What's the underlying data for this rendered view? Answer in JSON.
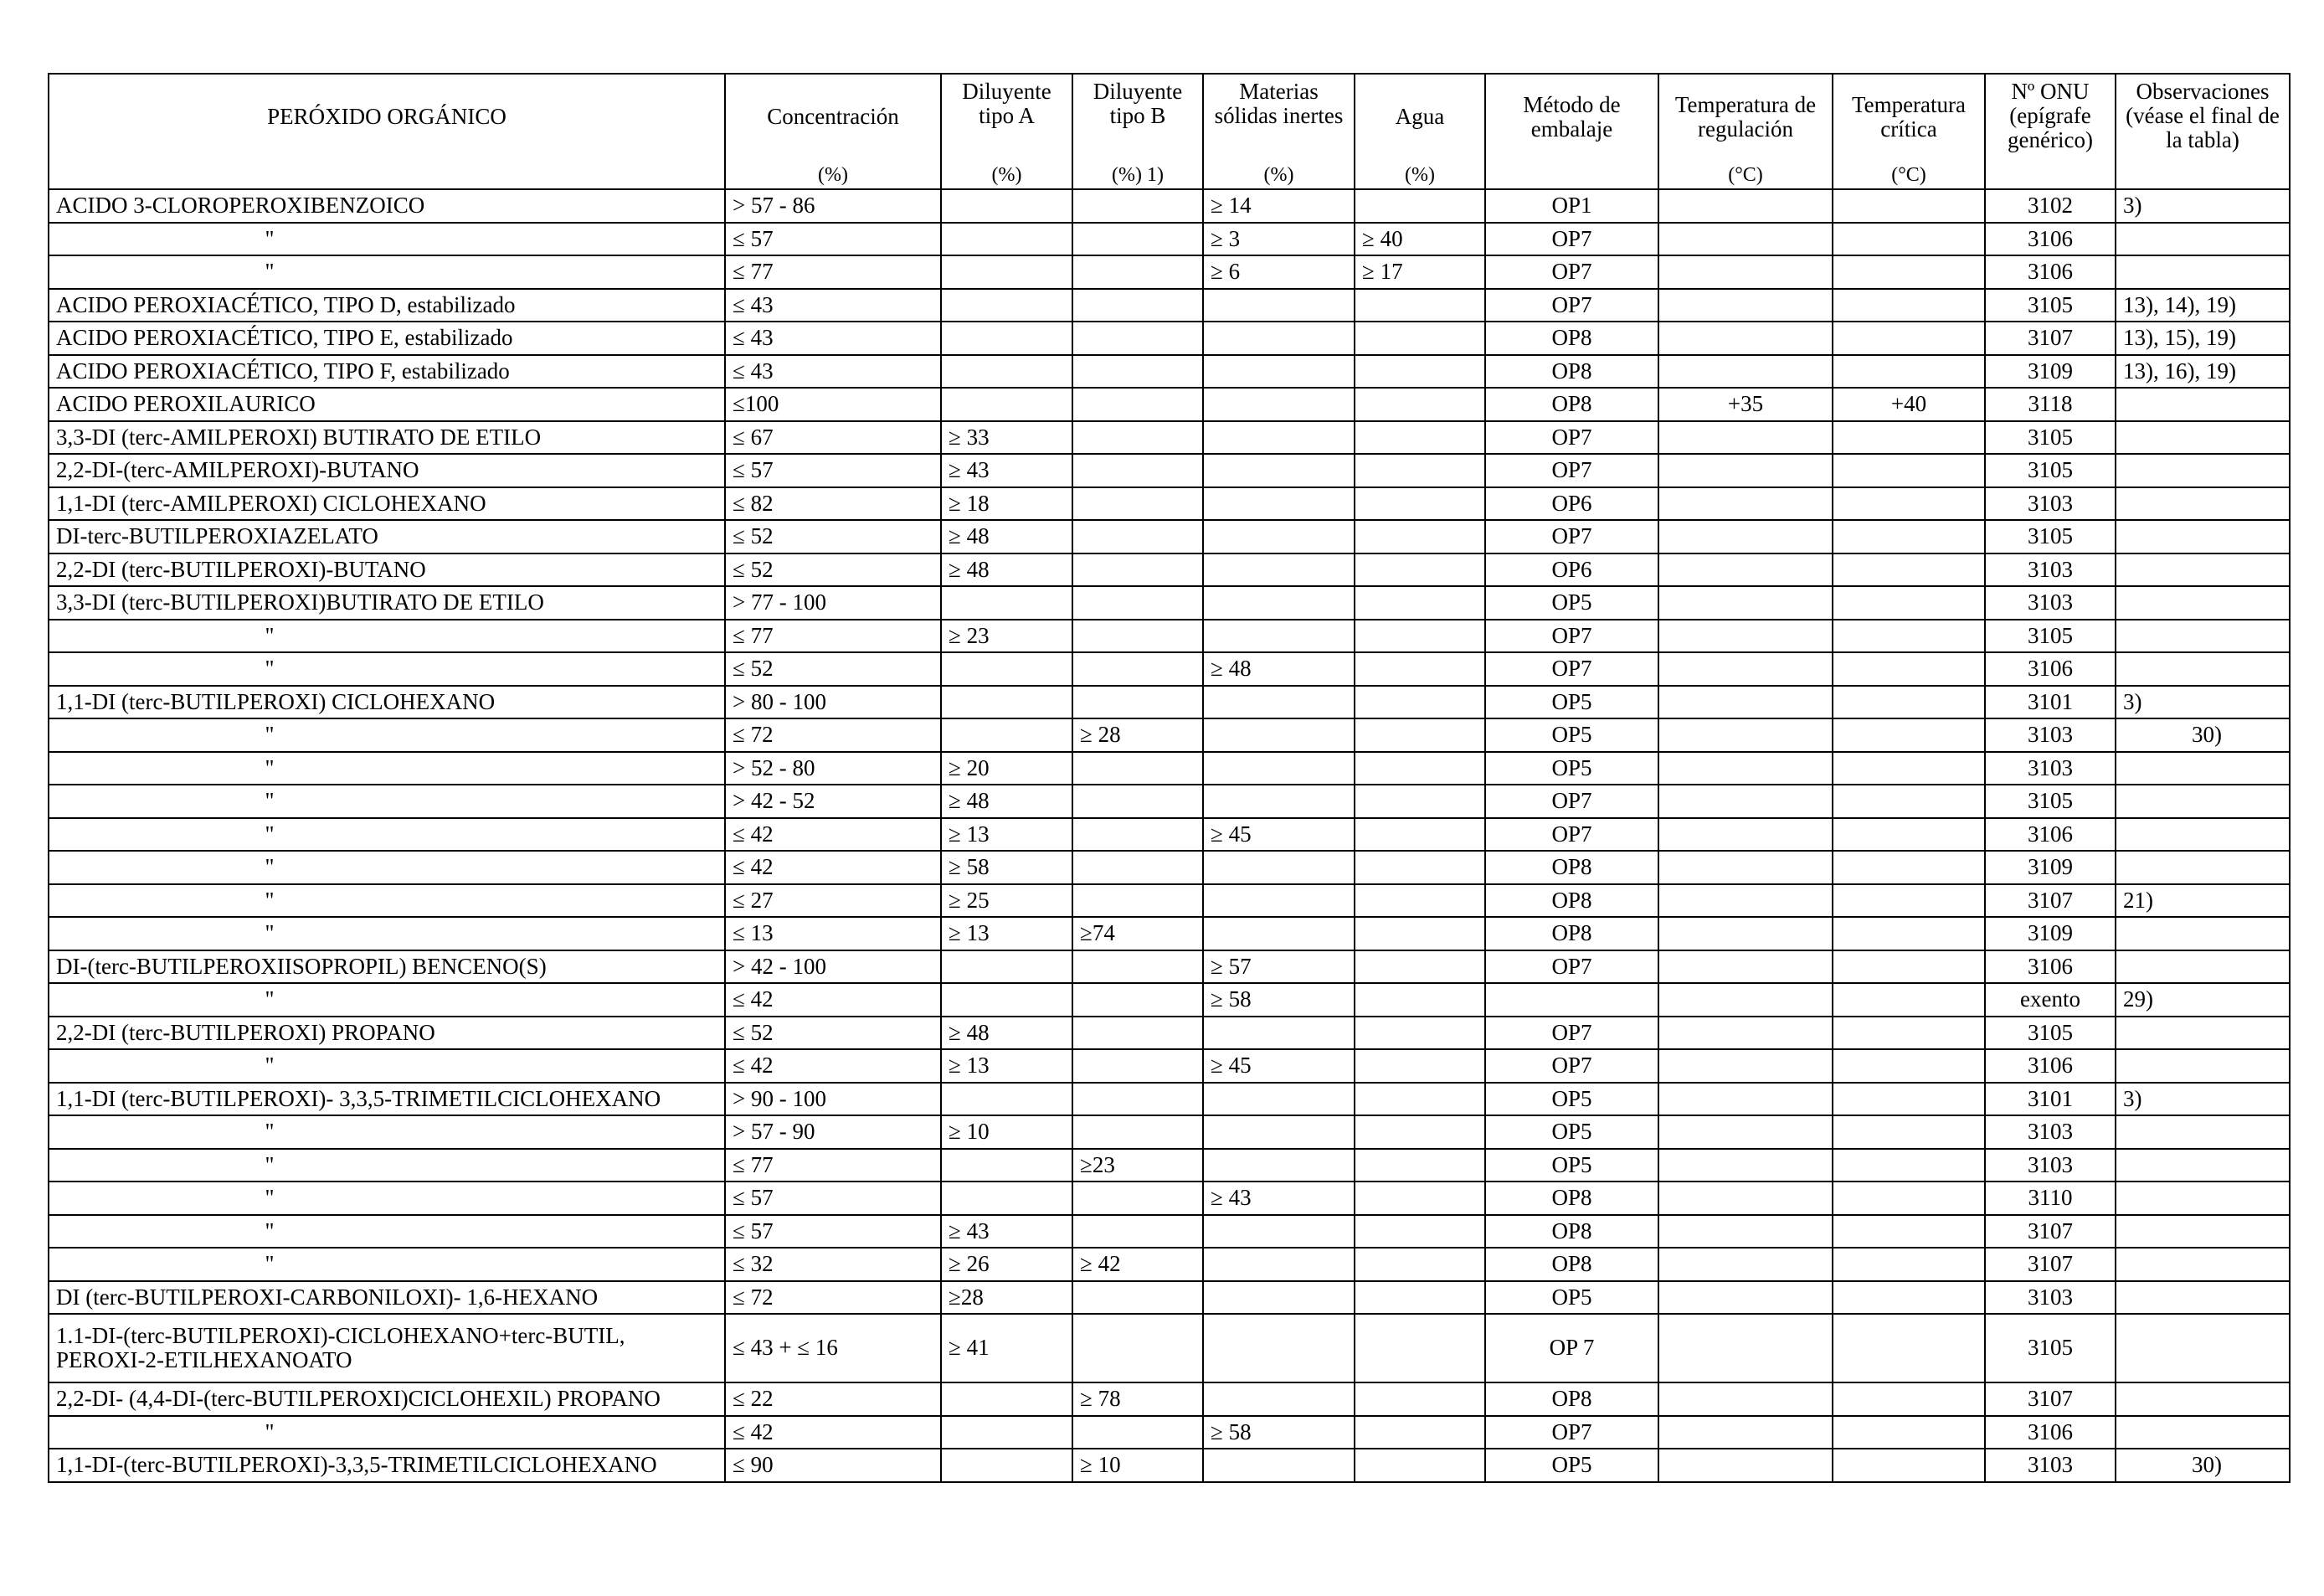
{
  "table": {
    "headers": {
      "name": "PERÓXIDO ORGÁNICO",
      "concentration": "Concentración",
      "concentration_unit": "(%)",
      "diluent_a": "Diluyente tipo A",
      "diluent_a_unit": "(%)",
      "diluent_b": "Diluyente tipo B",
      "diluent_b_unit": "(%) 1)",
      "inert_solids": "Materias sólidas inertes",
      "inert_solids_unit": "(%)",
      "water": "Agua",
      "water_unit": "(%)",
      "packing_method": "Método de embalaje",
      "control_temp": "Temperatura de regulación",
      "control_temp_unit": "(°C)",
      "critical_temp": "Temperatura crítica",
      "critical_temp_unit": "(°C)",
      "un_number": "Nº ONU (epígrafe genérico)",
      "observations": "Observaciones (véase el final de la tabla)"
    },
    "rows": [
      {
        "name": "ACIDO 3-CLOROPEROXIBENZOICO",
        "conc": "> 57 - 86",
        "a": "",
        "b": "",
        "solid": "≥ 14",
        "water": "",
        "method": "OP1",
        "treg": "",
        "tcrit": "",
        "un": "3102",
        "obs": "3)"
      },
      {
        "name": "\"",
        "conc": "≤ 57",
        "a": "",
        "b": "",
        "solid": "≥ 3",
        "water": "≥ 40",
        "method": "OP7",
        "treg": "",
        "tcrit": "",
        "un": "3106",
        "obs": ""
      },
      {
        "name": "\"",
        "conc": "≤ 77",
        "a": "",
        "b": "",
        "solid": "≥ 6",
        "water": "≥ 17",
        "method": "OP7",
        "treg": "",
        "tcrit": "",
        "un": "3106",
        "obs": ""
      },
      {
        "name": "ACIDO PEROXIACÉTICO, TIPO D, estabilizado",
        "conc": "≤ 43",
        "a": "",
        "b": "",
        "solid": "",
        "water": "",
        "method": "OP7",
        "treg": "",
        "tcrit": "",
        "un": "3105",
        "obs": "13), 14), 19)"
      },
      {
        "name": "ACIDO PEROXIACÉTICO, TIPO E, estabilizado",
        "conc": "≤ 43",
        "a": "",
        "b": "",
        "solid": "",
        "water": "",
        "method": "OP8",
        "treg": "",
        "tcrit": "",
        "un": "3107",
        "obs": "13), 15), 19)"
      },
      {
        "name": "ACIDO PEROXIACÉTICO, TIPO F, estabilizado",
        "conc": "≤ 43",
        "a": "",
        "b": "",
        "solid": "",
        "water": "",
        "method": "OP8",
        "treg": "",
        "tcrit": "",
        "un": "3109",
        "obs": "13), 16), 19)"
      },
      {
        "name": "ACIDO PEROXILAURICO",
        "conc": "≤100",
        "a": "",
        "b": "",
        "solid": "",
        "water": "",
        "method": "OP8",
        "treg": "+35",
        "tcrit": "+40",
        "un": "3118",
        "obs": ""
      },
      {
        "name": "3,3-DI (terc-AMILPEROXI) BUTIRATO DE ETILO",
        "conc": "≤ 67",
        "a": "≥ 33",
        "b": "",
        "solid": "",
        "water": "",
        "method": "OP7",
        "treg": "",
        "tcrit": "",
        "un": "3105",
        "obs": ""
      },
      {
        "name": "2,2-DI-(terc-AMILPEROXI)-BUTANO",
        "conc": "≤ 57",
        "a": "≥ 43",
        "b": "",
        "solid": "",
        "water": "",
        "method": "OP7",
        "treg": "",
        "tcrit": "",
        "un": "3105",
        "obs": ""
      },
      {
        "name": "1,1-DI (terc-AMILPEROXI) CICLOHEXANO",
        "conc": "≤ 82",
        "a": "≥ 18",
        "b": "",
        "solid": "",
        "water": "",
        "method": "OP6",
        "treg": "",
        "tcrit": "",
        "un": "3103",
        "obs": ""
      },
      {
        "name": "DI-terc-BUTILPEROXIAZELATO",
        "conc": "≤ 52",
        "a": "≥ 48",
        "b": "",
        "solid": "",
        "water": "",
        "method": "OP7",
        "treg": "",
        "tcrit": "",
        "un": "3105",
        "obs": ""
      },
      {
        "name": "2,2-DI (terc-BUTILPEROXI)-BUTANO",
        "conc": "≤ 52",
        "a": "≥ 48",
        "b": "",
        "solid": "",
        "water": "",
        "method": "OP6",
        "treg": "",
        "tcrit": "",
        "un": "3103",
        "obs": ""
      },
      {
        "name": "3,3-DI (terc-BUTILPEROXI)BUTIRATO DE ETILO",
        "conc": "> 77 - 100",
        "a": "",
        "b": "",
        "solid": "",
        "water": "",
        "method": "OP5",
        "treg": "",
        "tcrit": "",
        "un": "3103",
        "obs": ""
      },
      {
        "name": "\"",
        "conc": "≤ 77",
        "a": "≥ 23",
        "b": "",
        "solid": "",
        "water": "",
        "method": "OP7",
        "treg": "",
        "tcrit": "",
        "un": "3105",
        "obs": ""
      },
      {
        "name": "\"",
        "conc": "≤ 52",
        "a": "",
        "b": "",
        "solid": "≥ 48",
        "water": "",
        "method": "OP7",
        "treg": "",
        "tcrit": "",
        "un": "3106",
        "obs": ""
      },
      {
        "name": "1,1-DI (terc-BUTILPEROXI) CICLOHEXANO",
        "conc": "> 80 - 100",
        "a": "",
        "b": "",
        "solid": "",
        "water": "",
        "method": "OP5",
        "treg": "",
        "tcrit": "",
        "un": "3101",
        "obs": "3)"
      },
      {
        "name": "\"",
        "conc": "≤ 72",
        "a": "",
        "b": "≥ 28",
        "solid": "",
        "water": "",
        "method": "OP5",
        "treg": "",
        "tcrit": "",
        "un": "3103",
        "obs": "30)",
        "obs_right": true
      },
      {
        "name": "\"",
        "conc": "> 52 - 80",
        "a": "≥ 20",
        "b": "",
        "solid": "",
        "water": "",
        "method": "OP5",
        "treg": "",
        "tcrit": "",
        "un": "3103",
        "obs": ""
      },
      {
        "name": "\"",
        "conc": "> 42 - 52",
        "a": "≥ 48",
        "b": "",
        "solid": "",
        "water": "",
        "method": "OP7",
        "treg": "",
        "tcrit": "",
        "un": "3105",
        "obs": ""
      },
      {
        "name": "\"",
        "conc": "≤ 42",
        "a": "≥ 13",
        "b": "",
        "solid": "≥ 45",
        "water": "",
        "method": "OP7",
        "treg": "",
        "tcrit": "",
        "un": "3106",
        "obs": ""
      },
      {
        "name": "\"",
        "conc": "≤ 42",
        "a": "≥ 58",
        "b": "",
        "solid": "",
        "water": "",
        "method": "OP8",
        "treg": "",
        "tcrit": "",
        "un": "3109",
        "obs": ""
      },
      {
        "name": "\"",
        "conc": "≤ 27",
        "a": "≥ 25",
        "b": "",
        "solid": "",
        "water": "",
        "method": "OP8",
        "treg": "",
        "tcrit": "",
        "un": "3107",
        "obs": "21)"
      },
      {
        "name": "\"",
        "conc": "≤ 13",
        "a": "≥ 13",
        "b": "≥74",
        "solid": "",
        "water": "",
        "method": "OP8",
        "treg": "",
        "tcrit": "",
        "un": "3109",
        "obs": ""
      },
      {
        "name": "DI-(terc-BUTILPEROXIISOPROPIL) BENCENO(S)",
        "conc": "> 42 - 100",
        "a": "",
        "b": "",
        "solid": "≥ 57",
        "water": "",
        "method": "OP7",
        "treg": "",
        "tcrit": "",
        "un": "3106",
        "obs": ""
      },
      {
        "name": "\"",
        "conc": "≤ 42",
        "a": "",
        "b": "",
        "solid": "≥ 58",
        "water": "",
        "method": "",
        "treg": "",
        "tcrit": "",
        "un": "exento",
        "obs": "29)"
      },
      {
        "name": "2,2-DI (terc-BUTILPEROXI) PROPANO",
        "conc": "≤ 52",
        "a": "≥ 48",
        "b": "",
        "solid": "",
        "water": "",
        "method": "OP7",
        "treg": "",
        "tcrit": "",
        "un": "3105",
        "obs": ""
      },
      {
        "name": "\"",
        "conc": "≤ 42",
        "a": "≥ 13",
        "b": "",
        "solid": "≥ 45",
        "water": "",
        "method": "OP7",
        "treg": "",
        "tcrit": "",
        "un": "3106",
        "obs": ""
      },
      {
        "name": "1,1-DI (terc-BUTILPEROXI)- 3,3,5-TRIMETILCICLOHEXANO",
        "conc": "> 90 - 100",
        "a": "",
        "b": "",
        "solid": "",
        "water": "",
        "method": "OP5",
        "treg": "",
        "tcrit": "",
        "un": "3101",
        "obs": "3)"
      },
      {
        "name": "\"",
        "conc": "> 57 - 90",
        "a": "≥ 10",
        "b": "",
        "solid": "",
        "water": "",
        "method": "OP5",
        "treg": "",
        "tcrit": "",
        "un": "3103",
        "obs": ""
      },
      {
        "name": "\"",
        "conc": "≤ 77",
        "a": "",
        "b": "≥23",
        "solid": "",
        "water": "",
        "method": "OP5",
        "treg": "",
        "tcrit": "",
        "un": "3103",
        "obs": ""
      },
      {
        "name": "\"",
        "conc": "≤ 57",
        "a": "",
        "b": "",
        "solid": "≥ 43",
        "water": "",
        "method": "OP8",
        "treg": "",
        "tcrit": "",
        "un": "3110",
        "obs": ""
      },
      {
        "name": "\"",
        "conc": "≤ 57",
        "a": "≥ 43",
        "b": "",
        "solid": "",
        "water": "",
        "method": "OP8",
        "treg": "",
        "tcrit": "",
        "un": "3107",
        "obs": ""
      },
      {
        "name": "\"",
        "conc": "≤ 32",
        "a": "≥ 26",
        "b": "≥ 42",
        "solid": "",
        "water": "",
        "method": "OP8",
        "treg": "",
        "tcrit": "",
        "un": "3107",
        "obs": ""
      },
      {
        "name": "DI (terc-BUTILPEROXI-CARBONILOXI)- 1,6-HEXANO",
        "conc": "≤ 72",
        "a": "≥28",
        "b": "",
        "solid": "",
        "water": "",
        "method": "OP5",
        "treg": "",
        "tcrit": "",
        "un": "3103",
        "obs": ""
      },
      {
        "name": "1.1-DI-(terc-BUTILPEROXI)-CICLOHEXANO+terc-BUTIL, PEROXI-2-ETILHEXANOATO",
        "conc": "≤ 43 + ≤ 16",
        "a": "≥ 41",
        "b": "",
        "solid": "",
        "water": "",
        "method": "OP 7",
        "treg": "",
        "tcrit": "",
        "un": "3105",
        "obs": "",
        "tall": true
      },
      {
        "name": "2,2-DI- (4,4-DI-(terc-BUTILPEROXI)CICLOHEXIL) PROPANO",
        "conc": "≤ 22",
        "a": "",
        "b": "≥ 78",
        "solid": "",
        "water": "",
        "method": "OP8",
        "treg": "",
        "tcrit": "",
        "un": "3107",
        "obs": ""
      },
      {
        "name": "\"",
        "conc": "≤ 42",
        "a": "",
        "b": "",
        "solid": "≥ 58",
        "water": "",
        "method": "OP7",
        "treg": "",
        "tcrit": "",
        "un": "3106",
        "obs": ""
      },
      {
        "name": "1,1-DI-(terc-BUTILPEROXI)-3,3,5-TRIMETILCICLOHEXANO",
        "conc": "≤ 90",
        "a": "",
        "b": "≥ 10",
        "solid": "",
        "water": "",
        "method": "OP5",
        "treg": "",
        "tcrit": "",
        "un": "3103",
        "obs": "30)",
        "obs_right": true
      }
    ]
  }
}
